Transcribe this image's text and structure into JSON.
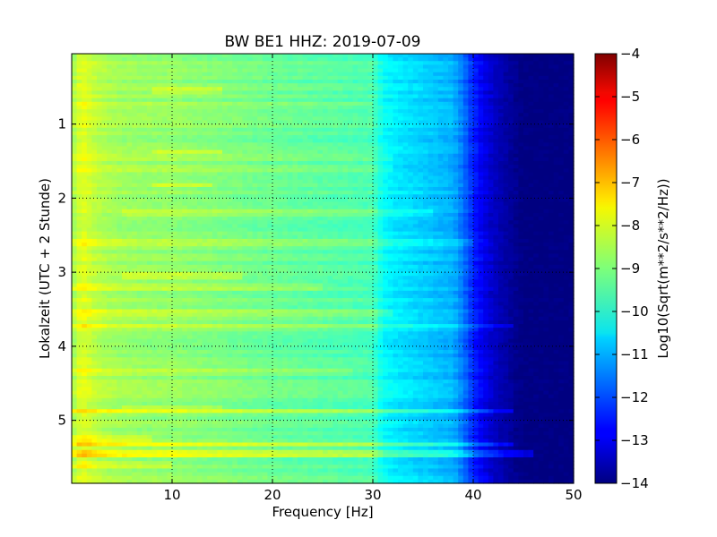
{
  "chart_data": {
    "type": "heatmap",
    "title": "BW BE1 HHZ: 2019-07-09",
    "xlabel": "Frequency [Hz]",
    "ylabel": "Lokalzeit (UTC + 2 Stunde)",
    "xlim": [
      0,
      50
    ],
    "ylim": [
      5.85,
      0.05
    ],
    "y_inverted": true,
    "grid": true,
    "x_ticks": [
      10,
      20,
      30,
      40,
      50
    ],
    "x_tick_labels": [
      "10",
      "20",
      "30",
      "40",
      "50"
    ],
    "y_ticks": [
      1,
      2,
      3,
      4,
      5
    ],
    "y_tick_labels": [
      "1",
      "2",
      "3",
      "4",
      "5"
    ],
    "colorbar": {
      "label": "Log10(Sqrt(m**2/s**2/Hz))",
      "range": [
        -14,
        -4
      ],
      "ticks": [
        -4,
        -5,
        -6,
        -7,
        -8,
        -9,
        -10,
        -11,
        -12,
        -13,
        -14
      ],
      "tick_labels": [
        "−4",
        "−5",
        "−6",
        "−7",
        "−8",
        "−9",
        "−10",
        "−11",
        "−12",
        "−13",
        "−14"
      ],
      "colormap": "jet"
    },
    "frequency_profile": {
      "frequency_hz": [
        0,
        1,
        2,
        3,
        5,
        8,
        10,
        12,
        15,
        20,
        25,
        28,
        30,
        31,
        32,
        34,
        36,
        38,
        39,
        40,
        41,
        42,
        43,
        45,
        50
      ],
      "log10_amplitude": [
        -8.7,
        -8.0,
        -8.3,
        -8.5,
        -8.7,
        -8.8,
        -8.8,
        -8.9,
        -9.0,
        -9.2,
        -9.35,
        -9.45,
        -9.5,
        -10.2,
        -10.4,
        -10.6,
        -10.8,
        -11.0,
        -11.6,
        -12.4,
        -12.9,
        -13.3,
        -13.6,
        -14.0,
        -14.0
      ]
    },
    "time_bands": [
      {
        "hour": 0.55,
        "freq_range": [
          8,
          15
        ],
        "delta": 0.5
      },
      {
        "hour": 0.72,
        "freq_range": [
          0,
          30
        ],
        "delta": 0.3
      },
      {
        "hour": 1.38,
        "freq_range": [
          8,
          15
        ],
        "delta": 0.5
      },
      {
        "hour": 1.45,
        "freq_range": [
          0,
          32
        ],
        "delta": 0.35
      },
      {
        "hour": 1.6,
        "freq_range": [
          0,
          32
        ],
        "delta": 0.4
      },
      {
        "hour": 1.82,
        "freq_range": [
          8,
          14
        ],
        "delta": 0.55
      },
      {
        "hour": 2.2,
        "freq_range": [
          5,
          36
        ],
        "delta": 0.4
      },
      {
        "hour": 2.6,
        "freq_range": [
          0,
          40
        ],
        "delta": 0.3
      },
      {
        "hour": 3.05,
        "freq_range": [
          5,
          17
        ],
        "delta": 0.5
      },
      {
        "hour": 3.2,
        "freq_range": [
          0,
          25
        ],
        "delta": 0.4
      },
      {
        "hour": 3.55,
        "freq_range": [
          0,
          32
        ],
        "delta": 0.35
      },
      {
        "hour": 3.72,
        "freq_range": [
          0,
          44
        ],
        "delta": 0.7
      },
      {
        "hour": 4.35,
        "freq_range": [
          0,
          28
        ],
        "delta": 0.3
      },
      {
        "hour": 4.82,
        "freq_range": [
          5,
          15
        ],
        "delta": 0.5
      },
      {
        "hour": 4.88,
        "freq_range": [
          0,
          44
        ],
        "delta": 0.8
      },
      {
        "hour": 5.25,
        "freq_range": [
          0,
          8
        ],
        "delta": 0.5
      },
      {
        "hour": 5.33,
        "freq_range": [
          0,
          44
        ],
        "delta": 0.9
      },
      {
        "hour": 5.45,
        "freq_range": [
          0,
          46
        ],
        "delta": 0.9
      },
      {
        "hour": 5.6,
        "freq_range": [
          0,
          10
        ],
        "delta": 0.4
      }
    ]
  }
}
